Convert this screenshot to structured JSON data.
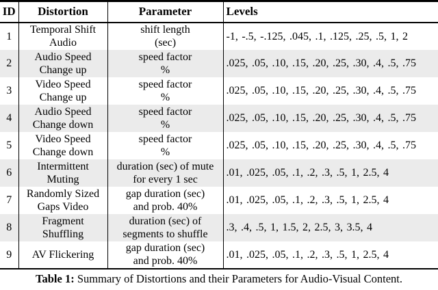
{
  "table": {
    "headers": [
      "ID",
      "Distortion",
      "Parameter",
      "Levels"
    ],
    "rows": [
      {
        "id": "1",
        "distortion": "Temporal Shift\nAudio",
        "parameter": "shift length\n(sec)",
        "levels": "-1, -.5, -.125, .045, .1, .125, .25, .5, 1, 2"
      },
      {
        "id": "2",
        "distortion": "Audio Speed\nChange up",
        "parameter": "speed factor\n%",
        "levels": ".025, .05, .10, .15, .20, .25, .30, .4, .5, .75"
      },
      {
        "id": "3",
        "distortion": "Video Speed\nChange up",
        "parameter": "speed factor\n%",
        "levels": ".025, .05, .10, .15, .20, .25, .30, .4, .5, .75"
      },
      {
        "id": "4",
        "distortion": "Audio Speed\nChange down",
        "parameter": "speed factor\n%",
        "levels": ".025, .05, .10, .15, .20, .25, .30, .4, .5, .75"
      },
      {
        "id": "5",
        "distortion": "Video Speed\nChange down",
        "parameter": "speed factor\n%",
        "levels": ".025, .05, .10, .15, .20, .25, .30, .4, .5, .75"
      },
      {
        "id": "6",
        "distortion": "Intermittent\nMuting",
        "parameter": "duration (sec) of mute\nfor every 1 sec",
        "levels": ".01, .025, .05, .1, .2, .3, .5, 1, 2.5, 4"
      },
      {
        "id": "7",
        "distortion": "Randomly Sized\nGaps Video",
        "parameter": "gap duration (sec)\nand prob. 40%",
        "levels": ".01, .025, .05, .1, .2, .3, .5, 1, 2.5, 4"
      },
      {
        "id": "8",
        "distortion": "Fragment\nShuffling",
        "parameter": "duration (sec) of\nsegments to shuffle",
        "levels": ".3, .4, .5, 1, 1.5, 2, 2.5, 3, 3.5, 4"
      },
      {
        "id": "9",
        "distortion": "AV Flickering",
        "parameter": "gap duration (sec)\nand prob. 40%",
        "levels": ".01, .025, .05, .1, .2, .3, .5, 1, 2.5, 4"
      }
    ]
  },
  "caption": {
    "label": "Table 1:",
    "text": " Summary of Distortions and their Parameters for Audio-Visual Content."
  },
  "colors": {
    "row_shade": "#ebebeb",
    "rule": "#000000",
    "text": "#000000",
    "background": "#ffffff"
  }
}
